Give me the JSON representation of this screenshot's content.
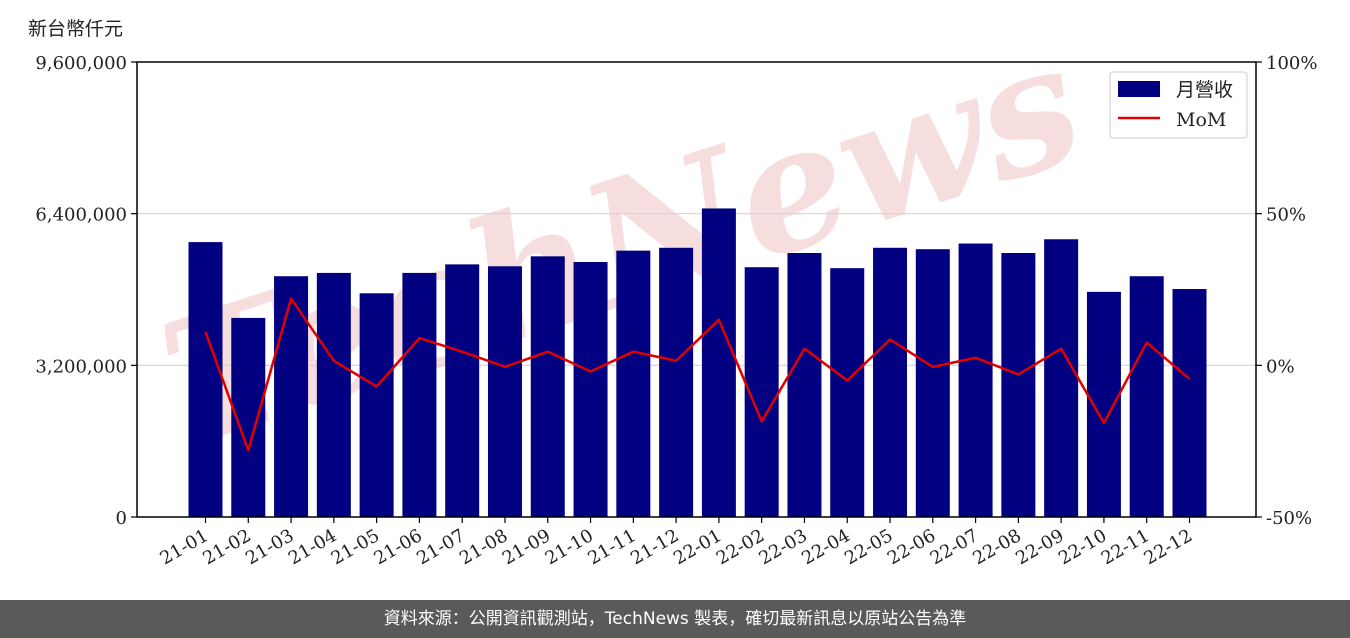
{
  "unit_label": "新台幣仟元",
  "footer": {
    "source_text": "資料來源：公開資訊觀測站，TechNews 製表，確切最新訊息以原站公告為準"
  },
  "watermark_text": "TechNews",
  "colors": {
    "bar": "#000080",
    "line": "#e00000",
    "grid": "#d3d3d3",
    "watermark": "#f7dede",
    "footer_bg": "#5a5a5a"
  },
  "chart_data": {
    "type": "bar",
    "categories": [
      "21-01",
      "21-02",
      "21-03",
      "21-04",
      "21-05",
      "21-06",
      "21-07",
      "21-08",
      "21-09",
      "21-10",
      "21-11",
      "21-12",
      "22-01",
      "22-02",
      "22-03",
      "22-04",
      "22-05",
      "22-06",
      "22-07",
      "22-08",
      "22-09",
      "22-10",
      "22-11",
      "22-12"
    ],
    "series": [
      {
        "name": "月營收",
        "type": "bar",
        "axis": "left",
        "values": [
          5800000,
          4200000,
          5080000,
          5150000,
          4720000,
          5150000,
          5330000,
          5290000,
          5500000,
          5380000,
          5620000,
          5680000,
          6510000,
          5270000,
          5570000,
          5250000,
          5680000,
          5650000,
          5770000,
          5570000,
          5860000,
          4750000,
          5080000,
          4810000
        ]
      },
      {
        "name": "MoM",
        "type": "line",
        "axis": "right",
        "values": [
          11,
          -28,
          22,
          1.5,
          -7,
          9,
          4.5,
          -0.5,
          4.5,
          -2,
          4.5,
          1.5,
          15,
          -18.5,
          5.5,
          -5,
          8.5,
          -0.5,
          2.5,
          -3,
          5.5,
          -19,
          7.5,
          -4.5
        ]
      }
    ],
    "y_left": {
      "range": [
        0,
        9600000
      ],
      "ticks": [
        0,
        3200000,
        6400000,
        9600000
      ],
      "tick_labels": [
        "0",
        "3,200,000",
        "6,400,000",
        "9,600,000"
      ]
    },
    "y_right": {
      "range": [
        -50,
        100
      ],
      "ticks": [
        -50,
        0,
        50,
        100
      ],
      "tick_labels": [
        "-50%",
        "0%",
        "50%",
        "100%"
      ]
    },
    "grid": true,
    "legend_position": "top-right"
  }
}
